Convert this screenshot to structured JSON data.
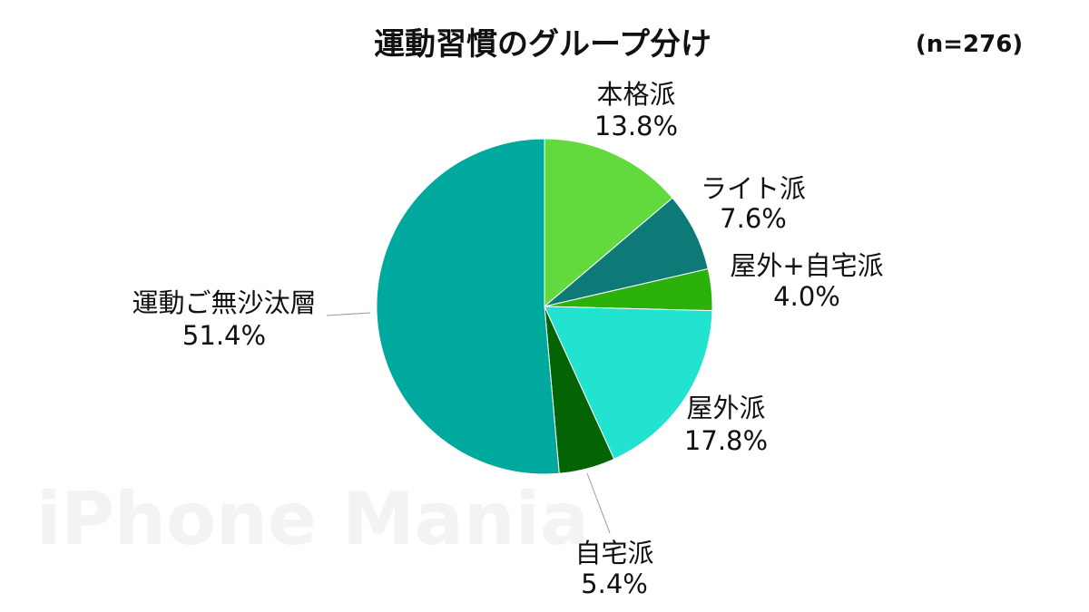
{
  "chart_data": {
    "type": "pie",
    "title": "運動習慣のグループ分け",
    "subtitle": "(n=276)",
    "categories": [
      "本格派",
      "ライト派",
      "屋外+自宅派",
      "屋外派",
      "自宅派",
      "運動ご無沙汰層"
    ],
    "values": [
      13.8,
      7.6,
      4.0,
      17.8,
      5.4,
      51.4
    ],
    "value_labels": [
      "13.8%",
      "7.6%",
      "4.0%",
      "17.8%",
      "5.4%",
      "51.4%"
    ],
    "colors": [
      "#62d93d",
      "#0d7a78",
      "#2cb00a",
      "#22e3cf",
      "#046404",
      "#00a99d"
    ],
    "start_angle_deg": 0,
    "direction": "clockwise"
  },
  "watermark": "iPhone Mania"
}
